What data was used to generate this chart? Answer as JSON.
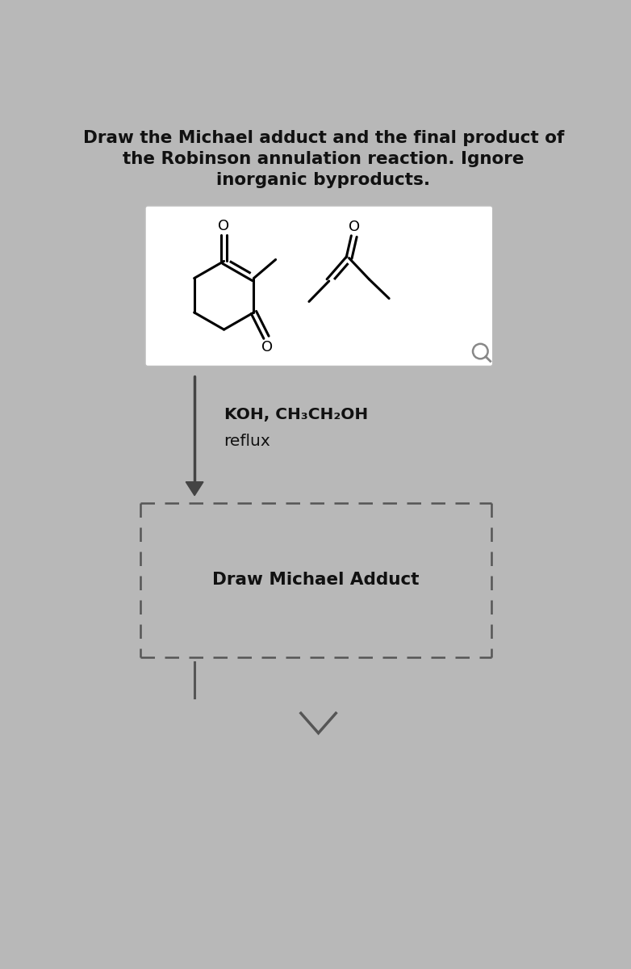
{
  "title_line1": "Draw the Michael adduct and the final product of",
  "title_line2": "the Robinson annulation reaction. Ignore",
  "title_line3": "inorganic byproducts.",
  "condition_line1": "KOH, CH₃CH₂OH",
  "condition_line2": "reflux",
  "draw_text": "Draw Michael Adduct",
  "bg_color": "#b8b8b8",
  "title_color": "#111111",
  "arrow_color": "#444444",
  "box_edge_color": "#cccccc",
  "dashed_box_color": "#555555",
  "white": "#ffffff",
  "black": "#000000",
  "gray": "#555555"
}
